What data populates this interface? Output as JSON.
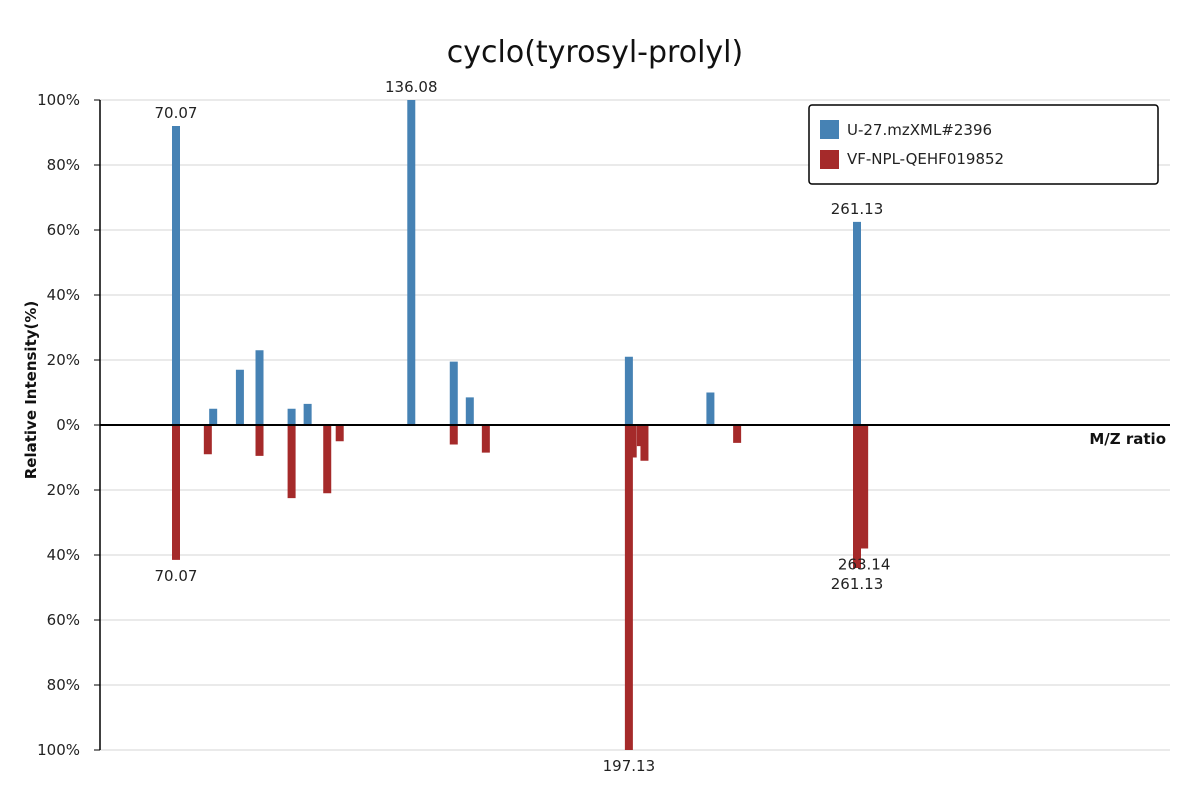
{
  "chart_data": {
    "type": "bar",
    "title": "cyclo(tyrosyl-prolyl)",
    "xlabel": "M/Z ratio",
    "ylabel": "Relative Intensity(%)",
    "ylim": [
      -100,
      100
    ],
    "ytick_labels": [
      "100%",
      "80%",
      "60%",
      "40%",
      "20%",
      "0%",
      "20%",
      "40%",
      "60%",
      "80%",
      "100%"
    ],
    "grid": true,
    "legend_position": "top-right",
    "series": [
      {
        "name": "U-27.mzXML#2396",
        "color": "#4682b4",
        "direction": "up",
        "points": [
          {
            "mz": 70.07,
            "intensity": 92,
            "label": "70.07"
          },
          {
            "mz": 80.5,
            "intensity": 5
          },
          {
            "mz": 88.0,
            "intensity": 17
          },
          {
            "mz": 93.5,
            "intensity": 23
          },
          {
            "mz": 102.5,
            "intensity": 5
          },
          {
            "mz": 107.0,
            "intensity": 6.5
          },
          {
            "mz": 136.08,
            "intensity": 100,
            "label": "136.08"
          },
          {
            "mz": 148.0,
            "intensity": 19.5
          },
          {
            "mz": 152.5,
            "intensity": 8.5
          },
          {
            "mz": 197.13,
            "intensity": 21
          },
          {
            "mz": 220.0,
            "intensity": 10
          },
          {
            "mz": 261.13,
            "intensity": 62.5,
            "label": "261.13"
          }
        ]
      },
      {
        "name": "VF-NPL-QEHF019852",
        "color": "#a52a2a",
        "direction": "down",
        "points": [
          {
            "mz": 70.07,
            "intensity": 41.5,
            "label": "70.07"
          },
          {
            "mz": 79.0,
            "intensity": 9
          },
          {
            "mz": 93.5,
            "intensity": 9.5
          },
          {
            "mz": 102.5,
            "intensity": 22.5
          },
          {
            "mz": 112.5,
            "intensity": 21
          },
          {
            "mz": 116.0,
            "intensity": 5
          },
          {
            "mz": 148.0,
            "intensity": 6
          },
          {
            "mz": 157.0,
            "intensity": 8.5
          },
          {
            "mz": 197.13,
            "intensity": 100,
            "label": "197.13"
          },
          {
            "mz": 198.2,
            "intensity": 10
          },
          {
            "mz": 200.5,
            "intensity": 6.5
          },
          {
            "mz": 201.5,
            "intensity": 11
          },
          {
            "mz": 227.5,
            "intensity": 5.5
          },
          {
            "mz": 261.13,
            "intensity": 44,
            "label": "261.13"
          },
          {
            "mz": 263.14,
            "intensity": 38,
            "label": "263.14"
          }
        ]
      }
    ]
  }
}
